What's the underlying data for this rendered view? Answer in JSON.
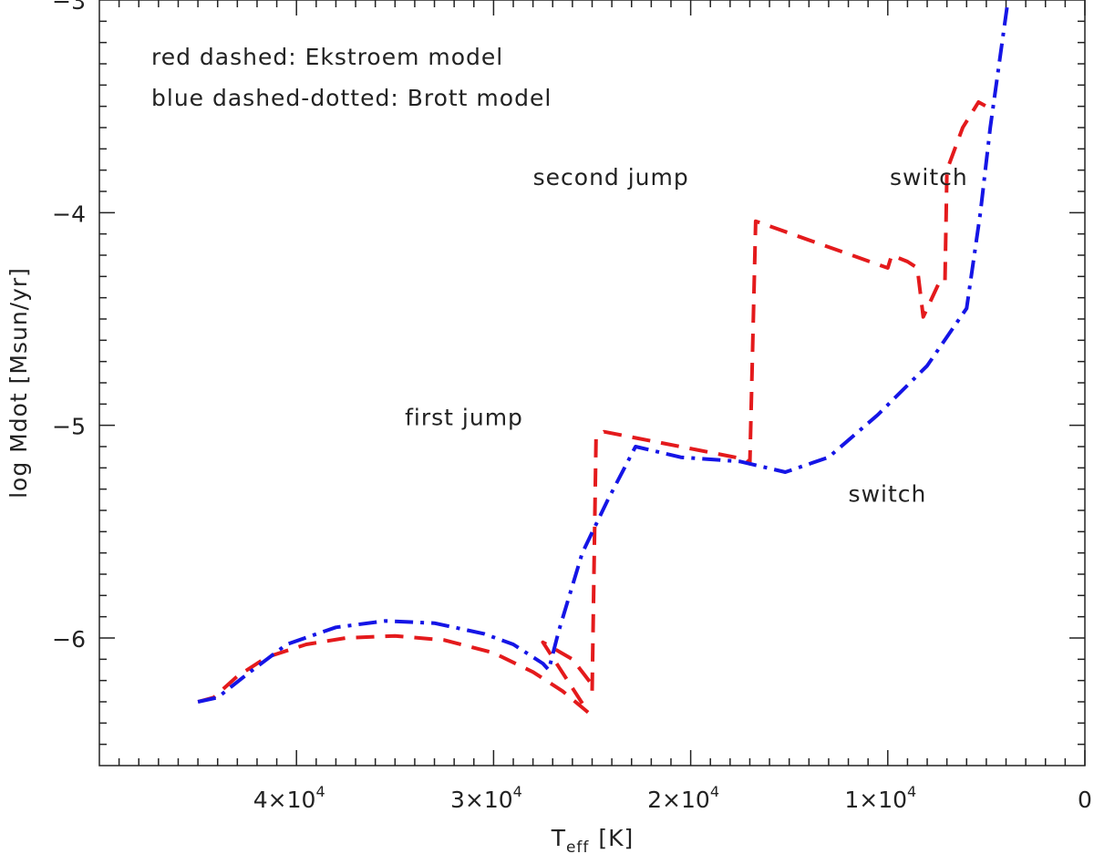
{
  "chart_data": {
    "type": "line",
    "title": "",
    "xlabel": "T",
    "xlabel_sub": "eff",
    "xlabel_unit": "[K]",
    "ylabel": "log Mdot [Msun/yr]",
    "xlim": [
      50000,
      0
    ],
    "ylim": [
      -6.6,
      -3.0
    ],
    "x_reversed": true,
    "grid": false,
    "x_ticks": [
      {
        "value": 40000,
        "mant": "4×10",
        "exp": "4"
      },
      {
        "value": 30000,
        "mant": "3×10",
        "exp": "4"
      },
      {
        "value": 20000,
        "mant": "2×10",
        "exp": "4"
      },
      {
        "value": 10000,
        "mant": "1×10",
        "exp": "4"
      },
      {
        "value": 0,
        "mant": "0",
        "exp": ""
      }
    ],
    "y_ticks": [
      {
        "value": -6,
        "label": "−6"
      },
      {
        "value": -5,
        "label": "−5"
      },
      {
        "value": -4,
        "label": "−4"
      },
      {
        "value": -3,
        "label": "−3"
      }
    ],
    "legend_lines": [
      "red dashed: Ekstroem model",
      "blue dashed-dotted: Brott model"
    ],
    "annotations": [
      {
        "text": "second jump",
        "x": 28000,
        "y": -3.87
      },
      {
        "text": "switch",
        "x": 9900,
        "y": -3.87
      },
      {
        "text": "first jump",
        "x": 34500,
        "y": -5.0
      },
      {
        "text": "switch",
        "x": 12000,
        "y": -5.36
      }
    ],
    "series": [
      {
        "color": "#e41a1c",
        "dash": "dashed",
        "x": [
          45000,
          44200,
          43000,
          41500,
          39500,
          37500,
          35000,
          32500,
          30000,
          28000,
          26500,
          25200,
          27500,
          26000,
          25000,
          25000,
          24800,
          24400,
          17200,
          17000,
          16700,
          10000,
          9800,
          9000,
          8500,
          8200,
          7400,
          7100,
          7000,
          6800,
          6200,
          5400,
          5000
        ],
        "y": [
          -6.3,
          -6.28,
          -6.18,
          -6.09,
          -6.03,
          -6.0,
          -5.99,
          -6.01,
          -6.07,
          -6.16,
          -6.25,
          -6.35,
          -6.02,
          -6.1,
          -6.22,
          -6.25,
          -5.06,
          -5.03,
          -5.16,
          -5.18,
          -4.04,
          -4.26,
          -4.2,
          -4.23,
          -4.26,
          -4.49,
          -4.33,
          -4.33,
          -3.8,
          -3.75,
          -3.6,
          -3.48,
          -3.5
        ]
      },
      {
        "color": "#1515e6",
        "dash": "dash-dot",
        "x": [
          45000,
          44000,
          42500,
          40500,
          38000,
          35500,
          33000,
          30500,
          29000,
          27500,
          27200,
          26700,
          25500,
          24200,
          22800,
          20500,
          17500,
          15200,
          13000,
          10500,
          8000,
          6300,
          6000,
          5300,
          4800,
          3900
        ],
        "y": [
          -6.3,
          -6.28,
          -6.17,
          -6.03,
          -5.95,
          -5.92,
          -5.93,
          -5.98,
          -6.03,
          -6.12,
          -6.15,
          -5.97,
          -5.6,
          -5.35,
          -5.1,
          -5.15,
          -5.17,
          -5.22,
          -5.15,
          -4.95,
          -4.72,
          -4.49,
          -4.45,
          -4.0,
          -3.6,
          -3.0
        ]
      }
    ]
  }
}
